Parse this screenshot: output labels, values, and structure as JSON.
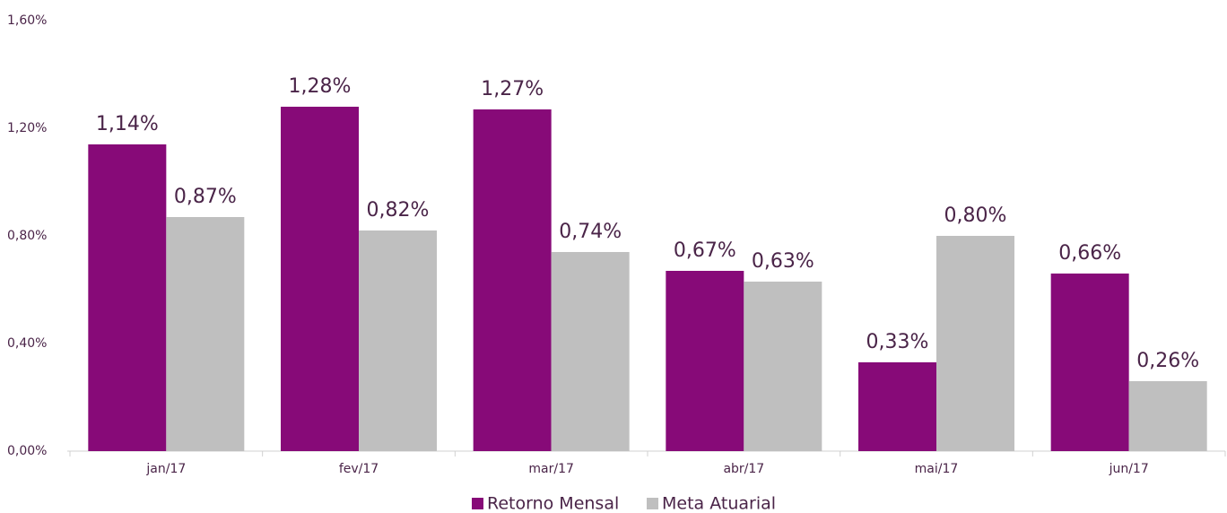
{
  "chart_data": {
    "type": "bar",
    "categories": [
      "jan/17",
      "fev/17",
      "mar/17",
      "abr/17",
      "mai/17",
      "jun/17"
    ],
    "series": [
      {
        "name": "Retorno Mensal",
        "color": "#870a78",
        "values": [
          1.14,
          1.28,
          1.27,
          0.67,
          0.33,
          0.66
        ],
        "value_labels": [
          "1,14%",
          "1,28%",
          "1,27%",
          "0,67%",
          "0,33%",
          "0,66%"
        ]
      },
      {
        "name": "Meta Atuarial",
        "color": "#bfbfbf",
        "values": [
          0.87,
          0.82,
          0.74,
          0.63,
          0.8,
          0.26
        ],
        "value_labels": [
          "0,87%",
          "0,82%",
          "0,74%",
          "0,63%",
          "0,80%",
          "0,26%"
        ]
      }
    ],
    "ylim": [
      0,
      1.6
    ],
    "yticks": [
      {
        "value": 0,
        "label": "0,00%"
      },
      {
        "value": 0.4,
        "label": "0,40%"
      },
      {
        "value": 0.8,
        "label": "0,80%"
      },
      {
        "value": 1.2,
        "label": "1,20%"
      },
      {
        "value": 1.6,
        "label": "1,60%"
      }
    ],
    "grid": false,
    "legend": "bottom"
  }
}
